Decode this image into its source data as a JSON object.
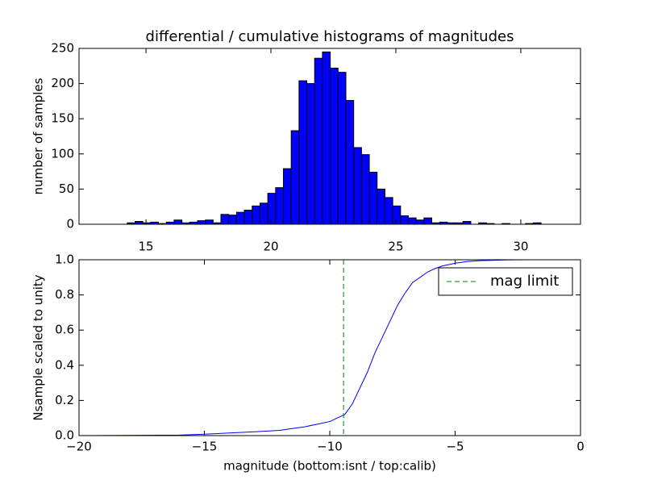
{
  "chart_data": [
    {
      "type": "histogram",
      "title": "differential / cumulative histograms of magnitudes",
      "ylabel": "number of samples",
      "bins": [
        14.25,
        14.5625,
        14.875,
        15.1875,
        15.5,
        15.8125,
        16.125,
        16.4375,
        16.75,
        17.0625,
        17.375,
        17.6875,
        18,
        18.3125,
        18.625,
        18.9375,
        19.25,
        19.5625,
        19.875,
        20.1875,
        20.5,
        20.8125,
        21.125,
        21.4375,
        21.75,
        22.0625,
        22.375,
        22.6875,
        23,
        23.3125,
        23.625,
        23.9375,
        24.25,
        24.5625,
        24.875,
        25.1875,
        25.5,
        25.8125,
        26.125,
        26.4375,
        26.75,
        27.0625,
        27.375,
        27.6875,
        28,
        28.3125,
        28.625,
        28.9375,
        29.25,
        29.5625,
        29.875,
        30.1875,
        30.5,
        30.8125,
        31.125,
        31.4375
      ],
      "values": [
        2,
        4,
        2,
        3,
        1,
        3,
        6,
        2,
        3,
        5,
        6,
        2,
        14,
        13,
        17,
        20,
        26,
        30,
        44,
        52,
        79,
        133,
        204,
        200,
        236,
        245,
        222,
        216,
        176,
        109,
        99,
        74,
        50,
        38,
        26,
        12,
        9,
        6,
        9,
        2,
        3,
        2,
        2,
        4,
        0,
        2,
        1,
        0,
        1,
        0,
        0,
        1,
        2,
        0,
        0
      ],
      "color": "#0000ff",
      "xlim": [
        12.32,
        32.39
      ],
      "xticks": [
        15,
        20,
        25,
        30
      ],
      "ylim": [
        0,
        250
      ],
      "yticks": [
        0,
        50,
        100,
        150,
        200,
        250
      ]
    },
    {
      "type": "line",
      "xlabel": "magnitude (bottom:isnt / top:calib)",
      "ylabel": "Nsample scaled to unity",
      "x": [
        -20,
        -16,
        -15,
        -14,
        -13,
        -12,
        -11.5,
        -11,
        -10.5,
        -10,
        -9.7,
        -9.4,
        -9.1,
        -8.8,
        -8.5,
        -8.2,
        -7.9,
        -7.6,
        -7.3,
        -7.0,
        -6.7,
        -6.4,
        -6.1,
        -5.8,
        -5.5,
        -5,
        -4.5,
        -4,
        -3,
        -2,
        0
      ],
      "series": [
        {
          "color": "#0000ff",
          "values": [
            0,
            0.003,
            0.008,
            0.015,
            0.022,
            0.03,
            0.04,
            0.05,
            0.065,
            0.08,
            0.1,
            0.12,
            0.18,
            0.27,
            0.36,
            0.47,
            0.56,
            0.65,
            0.74,
            0.81,
            0.87,
            0.9,
            0.93,
            0.95,
            0.965,
            0.98,
            0.99,
            0.995,
            0.999,
            1,
            1
          ]
        }
      ],
      "vlines": [
        {
          "name": "mag limit",
          "x": -9.45,
          "color": "#008000"
        }
      ],
      "legend": "upper right",
      "xlim": [
        -20,
        0
      ],
      "xticks": [
        {
          "value": -20,
          "label": "−20"
        },
        {
          "value": -15,
          "label": "−15"
        },
        {
          "value": -10,
          "label": "−10"
        },
        {
          "value": -5,
          "label": "−5"
        },
        0
      ],
      "ylim": [
        0,
        1
      ],
      "yticks": [
        {
          "value": 0,
          "label": "0.0"
        },
        {
          "value": 0.2,
          "label": "0.2"
        },
        {
          "value": 0.4,
          "label": "0.4"
        },
        {
          "value": 0.6,
          "label": "0.6"
        },
        {
          "value": 0.8,
          "label": "0.8"
        },
        {
          "value": 1,
          "label": "1.0"
        }
      ]
    }
  ]
}
